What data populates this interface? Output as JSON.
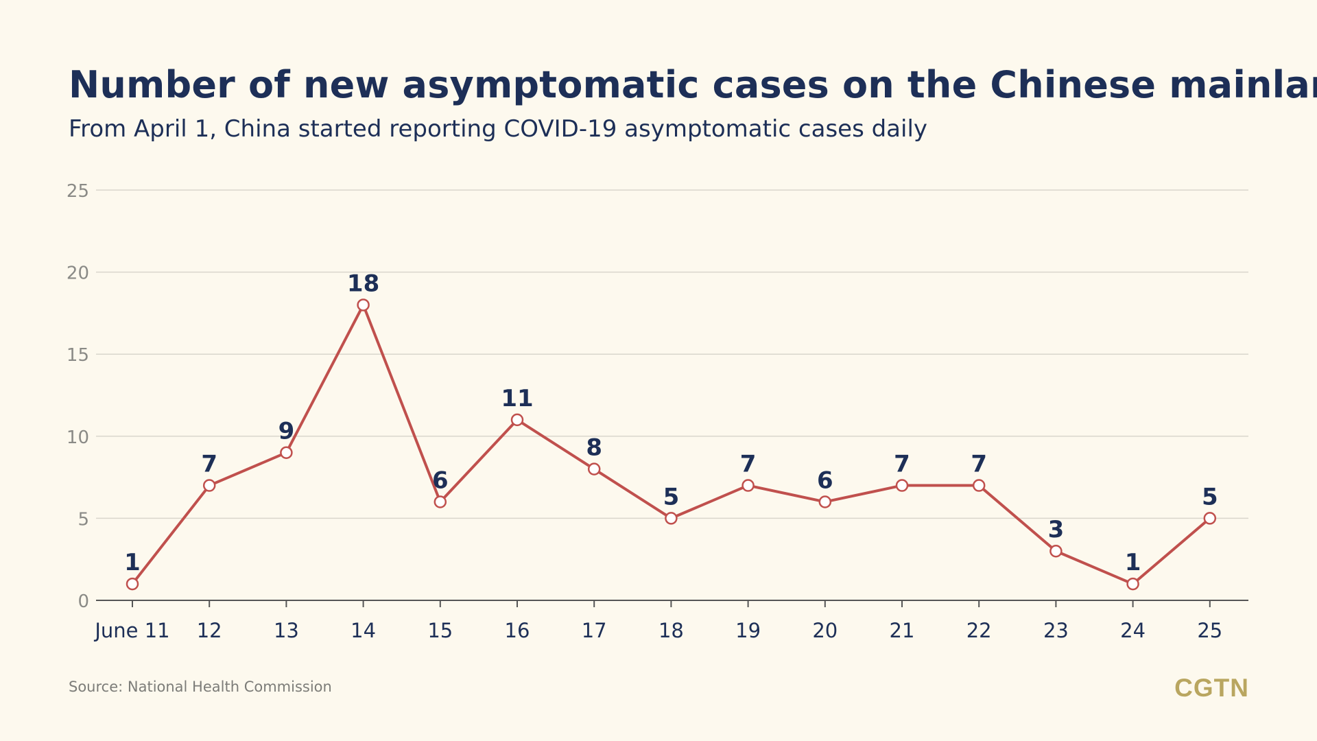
{
  "chart_data": {
    "type": "line",
    "title": "Number of new asymptomatic cases on the Chinese mainland",
    "subtitle": "From April 1, China started reporting COVID-19 asymptomatic cases daily",
    "categories": [
      "June 11",
      "12",
      "13",
      "14",
      "15",
      "16",
      "17",
      "18",
      "19",
      "20",
      "21",
      "22",
      "23",
      "24",
      "25"
    ],
    "values": [
      1,
      7,
      9,
      18,
      6,
      11,
      8,
      5,
      7,
      6,
      7,
      7,
      3,
      1,
      5
    ],
    "yticks": [
      "0",
      "5",
      "10",
      "15",
      "20",
      "25"
    ],
    "ylim": [
      0,
      25
    ],
    "grid": true,
    "legend": "none",
    "data_labels": true,
    "colors": {
      "line": "#c0504d",
      "marker_fill": "#ffffff",
      "title": "#1d2f57",
      "grid": "#d9d6cc",
      "background": "#fdf9ee"
    }
  },
  "source": "Source: National Health Commission",
  "brand": "CGTN"
}
